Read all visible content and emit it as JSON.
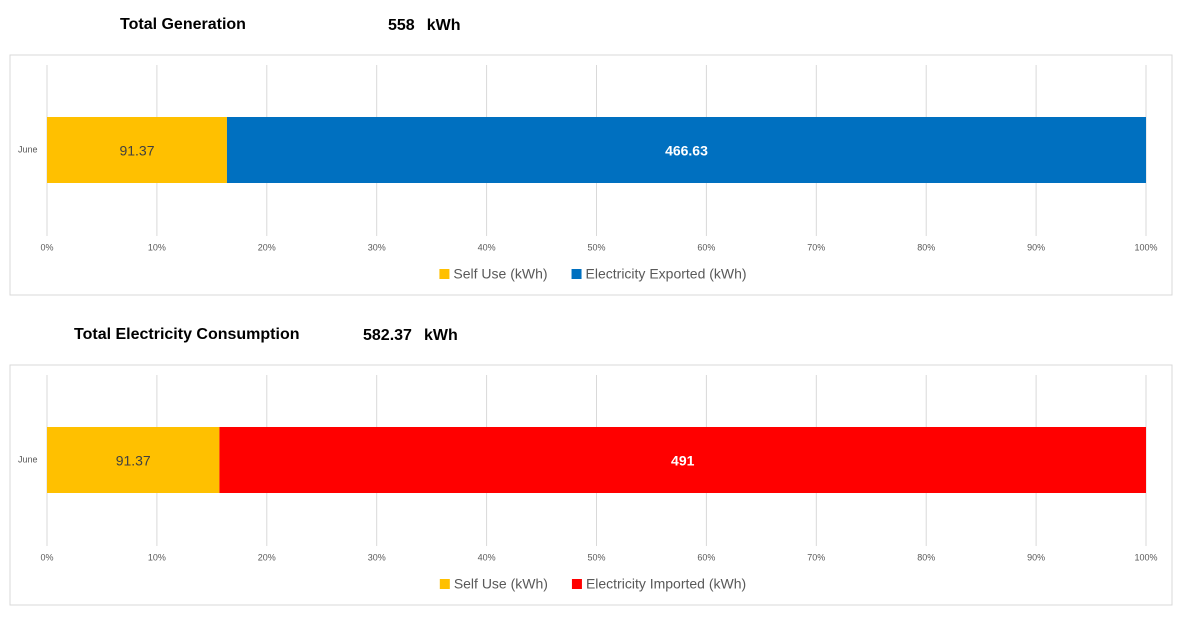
{
  "chart_data": [
    {
      "type": "bar",
      "orientation": "horizontal",
      "stacking": "percent",
      "title": "Total Generation",
      "total": 558,
      "total_unit": "kWh",
      "categories": [
        "June"
      ],
      "series": [
        {
          "name": "Self Use (kWh)",
          "color": "#FFC000",
          "values": [
            91.37
          ]
        },
        {
          "name": "Electricity Exported (kWh)",
          "color": "#0070C0",
          "values": [
            466.63
          ]
        }
      ],
      "xlim": [
        0,
        100
      ],
      "xticks": [
        {
          "value": 0,
          "label": "0%"
        },
        {
          "value": 10,
          "label": "10%"
        },
        {
          "value": 20,
          "label": "20%"
        },
        {
          "value": 30,
          "label": "30%"
        },
        {
          "value": 40,
          "label": "40%"
        },
        {
          "value": 50,
          "label": "50%"
        },
        {
          "value": 60,
          "label": "60%"
        },
        {
          "value": 70,
          "label": "70%"
        },
        {
          "value": 80,
          "label": "80%"
        },
        {
          "value": 90,
          "label": "90%"
        },
        {
          "value": 100,
          "label": "100%"
        }
      ],
      "grid": true,
      "legend": "bottom"
    },
    {
      "type": "bar",
      "orientation": "horizontal",
      "stacking": "percent",
      "title": "Total Electricity Consumption",
      "total": 582.37,
      "total_unit": "kWh",
      "categories": [
        "June"
      ],
      "series": [
        {
          "name": "Self Use (kWh)",
          "color": "#FFC000",
          "values": [
            91.37
          ]
        },
        {
          "name": "Electricity Imported (kWh)",
          "color": "#FF0000",
          "values": [
            491
          ]
        }
      ],
      "xlim": [
        0,
        100
      ],
      "xticks": [
        {
          "value": 0,
          "label": "0%"
        },
        {
          "value": 10,
          "label": "10%"
        },
        {
          "value": 20,
          "label": "20%"
        },
        {
          "value": 30,
          "label": "30%"
        },
        {
          "value": 40,
          "label": "40%"
        },
        {
          "value": 50,
          "label": "50%"
        },
        {
          "value": 60,
          "label": "60%"
        },
        {
          "value": 70,
          "label": "70%"
        },
        {
          "value": 80,
          "label": "80%"
        },
        {
          "value": 90,
          "label": "90%"
        },
        {
          "value": 100,
          "label": "100%"
        }
      ],
      "grid": true,
      "legend": "bottom"
    }
  ]
}
